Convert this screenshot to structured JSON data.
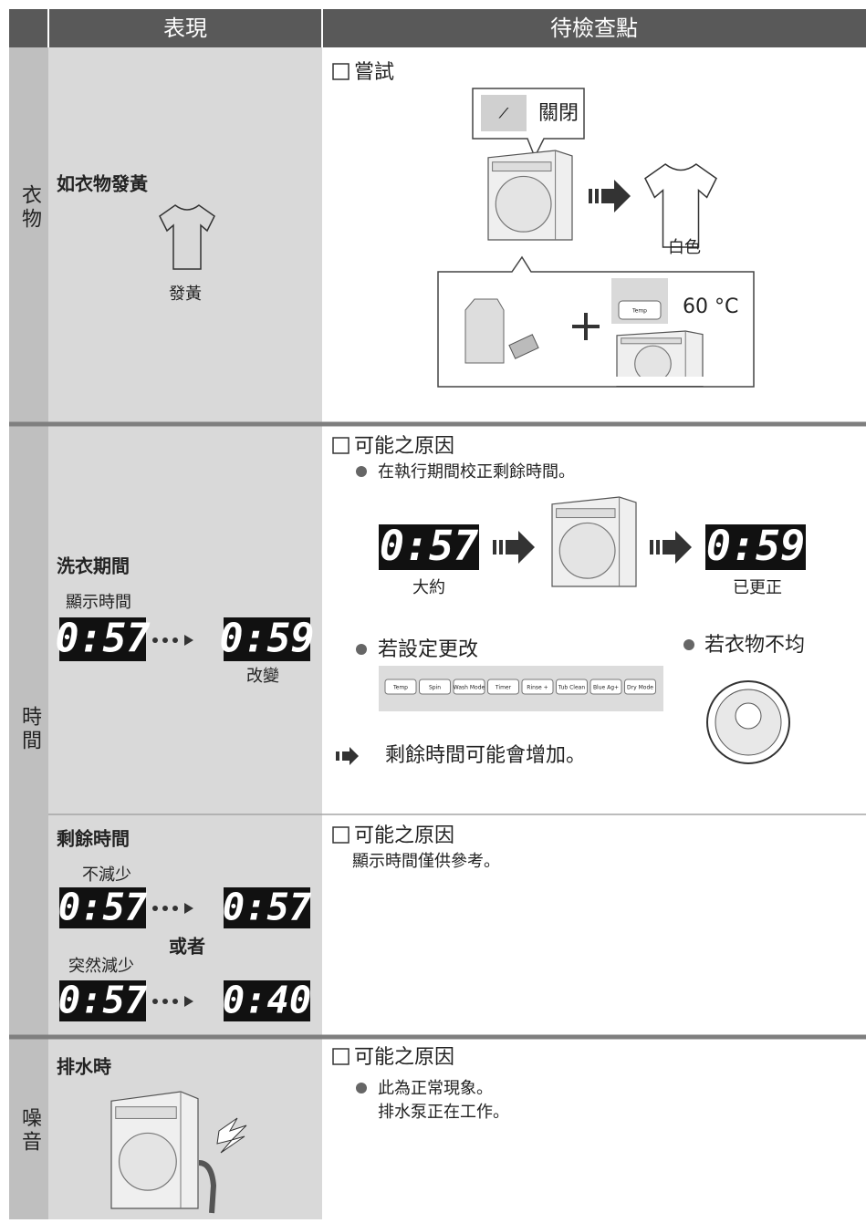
{
  "header": {
    "symptom": "表現",
    "check": "待檢查點"
  },
  "rows": [
    {
      "category": "衣物",
      "symptom": "如衣物發黃",
      "symptom_label": "發黃",
      "check_title": "嘗試",
      "power_label": "關閉",
      "result_label": "白色",
      "temp_button": "Temp",
      "temp_value": "60 °C"
    },
    {
      "category": "時間",
      "symptom": "洗衣期間",
      "caption": "顯示時間",
      "display_from": "0:57",
      "display_to": "0:59",
      "change_label": "改變",
      "check_title": "可能之原因",
      "cause": "在執行期間校正剩餘時間。",
      "before_display": "0:57",
      "before_label": "大約",
      "after_display": "0:59",
      "after_label": "已更正",
      "setting_cause": "若設定更改",
      "panel_buttons": [
        "Temp",
        "Spin",
        "Wash Mode",
        "Timer",
        "Rinse +",
        "Tub Clean",
        "Blue Ag+",
        "Dry Mode"
      ],
      "uneven_cause": "若衣物不均",
      "result": "剩餘時間可能會增加。"
    },
    {
      "symptom": "剩餘時間",
      "case1_label": "不減少",
      "case1": [
        "0:57",
        "0:57"
      ],
      "or": "或者",
      "case2_label": "突然減少",
      "case2": [
        "0:57",
        "0:40"
      ],
      "check_title": "可能之原因",
      "note": "顯示時間僅供參考。"
    },
    {
      "category": "噪音",
      "symptom": "排水時",
      "check_title": "可能之原因",
      "notes": [
        "此為正常現象。",
        "排水泵正在工作。"
      ]
    }
  ]
}
